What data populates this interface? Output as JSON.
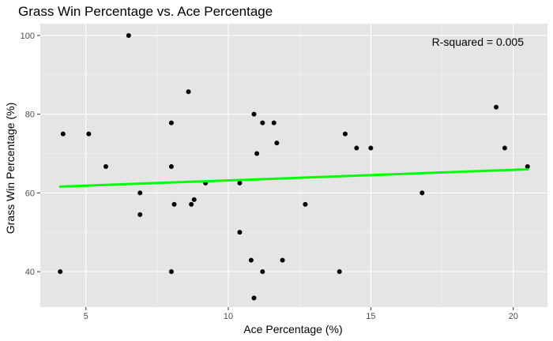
{
  "chart_data": {
    "type": "scatter",
    "title": "Grass Win Percentage vs. Ace Percentage",
    "xlabel": "Ace Percentage (%)",
    "ylabel": "Grass Win Percentage (%)",
    "xlim": [
      3.4,
      21.2
    ],
    "ylim": [
      31.0,
      103.0
    ],
    "x_ticks": [
      5,
      10,
      15,
      20
    ],
    "y_ticks": [
      40,
      60,
      80,
      100
    ],
    "grid": true,
    "background_color": "#e5e5e5",
    "point_color": "#000000",
    "trend_line_color": "#00ff00",
    "points": [
      {
        "x": 4.1,
        "y": 40.0
      },
      {
        "x": 4.2,
        "y": 75.0
      },
      {
        "x": 5.1,
        "y": 75.0
      },
      {
        "x": 5.7,
        "y": 66.7
      },
      {
        "x": 6.5,
        "y": 100.0
      },
      {
        "x": 6.9,
        "y": 60.0
      },
      {
        "x": 6.9,
        "y": 54.5
      },
      {
        "x": 8.0,
        "y": 77.8
      },
      {
        "x": 8.0,
        "y": 66.7
      },
      {
        "x": 8.0,
        "y": 40.0
      },
      {
        "x": 8.1,
        "y": 57.1
      },
      {
        "x": 8.6,
        "y": 85.7
      },
      {
        "x": 8.7,
        "y": 57.1
      },
      {
        "x": 8.8,
        "y": 58.3
      },
      {
        "x": 9.2,
        "y": 62.5
      },
      {
        "x": 10.4,
        "y": 62.5
      },
      {
        "x": 10.4,
        "y": 50.0
      },
      {
        "x": 10.8,
        "y": 42.9
      },
      {
        "x": 10.9,
        "y": 80.0
      },
      {
        "x": 10.9,
        "y": 33.3
      },
      {
        "x": 11.0,
        "y": 70.0
      },
      {
        "x": 11.2,
        "y": 77.8
      },
      {
        "x": 11.2,
        "y": 40.0
      },
      {
        "x": 11.6,
        "y": 77.8
      },
      {
        "x": 11.7,
        "y": 72.7
      },
      {
        "x": 11.9,
        "y": 42.9
      },
      {
        "x": 12.7,
        "y": 57.1
      },
      {
        "x": 13.9,
        "y": 40.0
      },
      {
        "x": 14.1,
        "y": 75.0
      },
      {
        "x": 14.5,
        "y": 71.4
      },
      {
        "x": 15.0,
        "y": 71.4
      },
      {
        "x": 16.8,
        "y": 60.0
      },
      {
        "x": 19.4,
        "y": 81.8
      },
      {
        "x": 19.7,
        "y": 71.4
      },
      {
        "x": 20.5,
        "y": 66.7
      }
    ],
    "trend_line": {
      "x": [
        4.1,
        20.5
      ],
      "y": [
        61.6,
        66.0
      ]
    },
    "annotation": "R-squared = 0.005"
  }
}
